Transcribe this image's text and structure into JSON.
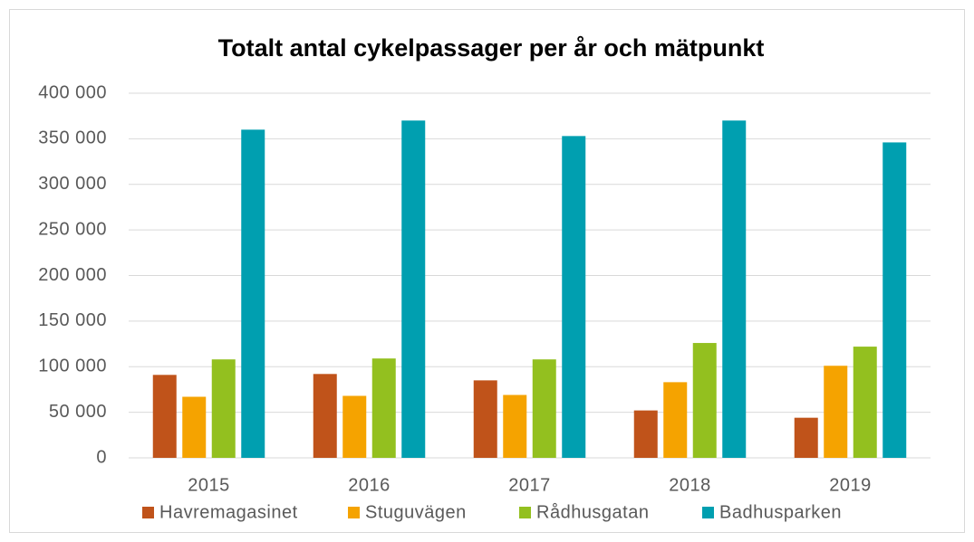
{
  "chart_data": {
    "type": "bar",
    "title": "Totalt antal cykelpassager per år och mätpunkt",
    "categories": [
      "2015",
      "2016",
      "2017",
      "2018",
      "2019"
    ],
    "series": [
      {
        "name": "Havremagasinet",
        "color": "#c0531a",
        "values": [
          91000,
          92000,
          85000,
          52000,
          44000
        ]
      },
      {
        "name": "Stuguvägen",
        "color": "#f5a300",
        "values": [
          67000,
          68000,
          69000,
          83000,
          101000
        ]
      },
      {
        "name": "Rådhusgatan",
        "color": "#93c01f",
        "values": [
          108000,
          109000,
          108000,
          126000,
          122000
        ]
      },
      {
        "name": "Badhusparken",
        "color": "#009fb0",
        "values": [
          360000,
          370000,
          353000,
          370000,
          346000
        ]
      }
    ],
    "ylim": [
      0,
      400000
    ],
    "yticks": [
      0,
      {
        "value": 50000,
        "label": "50 000"
      },
      {
        "value": 100000,
        "label": "100 000"
      },
      {
        "value": 150000,
        "label": "150 000"
      },
      {
        "value": 200000,
        "label": "200 000"
      },
      {
        "value": 250000,
        "label": "250 000"
      },
      {
        "value": 300000,
        "label": "300 000"
      },
      {
        "value": 350000,
        "label": "350 000"
      },
      {
        "value": 400000,
        "label": "400 000"
      }
    ],
    "grid": true,
    "legend": "bottom"
  }
}
